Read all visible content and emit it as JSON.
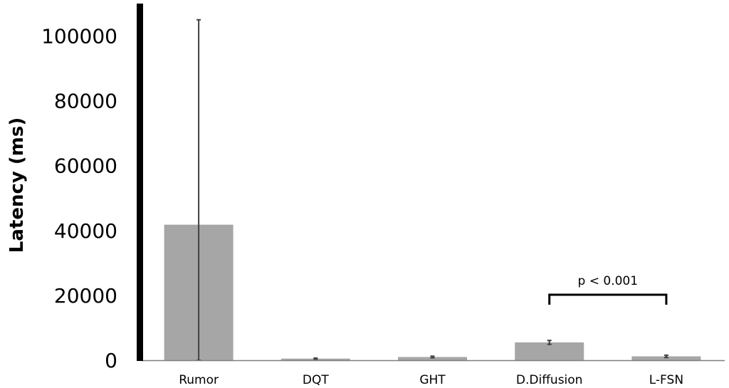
{
  "chart_data": {
    "type": "bar",
    "title": "",
    "xlabel": "",
    "ylabel": "Latency (ms)",
    "ylim": [
      0,
      110000
    ],
    "yticks": [
      0,
      20000,
      40000,
      60000,
      80000,
      100000
    ],
    "grid": false,
    "categories": [
      "Rumor",
      "DQT",
      "GHT",
      "D.Diffusion",
      "L-FSN"
    ],
    "series": [
      {
        "values": [
          41800,
          500,
          1000,
          5500,
          1200
        ],
        "error": [
          63200,
          150,
          250,
          600,
          350
        ],
        "color": "#a6a6a6"
      }
    ],
    "annotations": [
      {
        "text": "p < 0.001",
        "from": "D.Diffusion",
        "to": "L-FSN"
      }
    ],
    "axis_color": "#000000",
    "error_bar_color": "#404040"
  }
}
